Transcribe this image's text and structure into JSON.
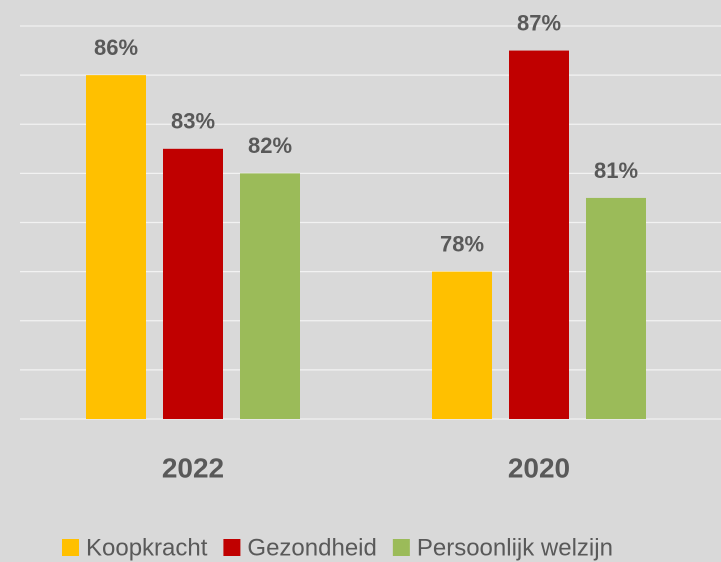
{
  "chart_data": {
    "type": "bar",
    "categories": [
      "2022",
      "2020"
    ],
    "series": [
      {
        "name": "Koopkracht",
        "color": "#ffc000",
        "values": [
          86,
          78
        ],
        "value_labels": [
          "86%",
          "78%"
        ]
      },
      {
        "name": "Gezondheid",
        "color": "#c00000",
        "values": [
          83,
          87
        ],
        "value_labels": [
          "83%",
          "87%"
        ]
      },
      {
        "name": "Persoonlijk welzijn",
        "color": "#9bbb59",
        "values": [
          82,
          81
        ],
        "value_labels": [
          "82%",
          "81%"
        ]
      }
    ],
    "ylim": [
      72,
      88
    ],
    "yticks": [
      72,
      74,
      76,
      78,
      80,
      82,
      84,
      86,
      88
    ],
    "grid": true,
    "legend": "bottom"
  }
}
